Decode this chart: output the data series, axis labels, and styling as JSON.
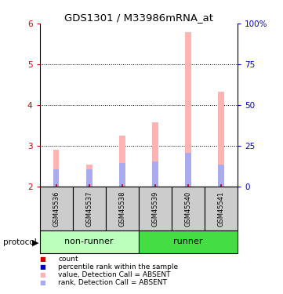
{
  "title": "GDS1301 / M33986mRNA_at",
  "samples": [
    "GSM45536",
    "GSM45537",
    "GSM45538",
    "GSM45539",
    "GSM45540",
    "GSM45541"
  ],
  "pink_bar_values": [
    2.9,
    2.55,
    3.25,
    3.58,
    5.78,
    4.32
  ],
  "blue_bar_values": [
    2.42,
    2.42,
    2.58,
    2.62,
    2.82,
    2.55
  ],
  "bar_bottom": 2.0,
  "ylim": [
    2.0,
    6.0
  ],
  "yticks_left": [
    2,
    3,
    4,
    5,
    6
  ],
  "yticks_right": [
    0,
    25,
    50,
    75,
    100
  ],
  "left_tick_color": "#cc0000",
  "right_tick_color": "#0000cc",
  "pink_color": "#ffb3b3",
  "blue_color": "#aaaaee",
  "red_marker_color": "#cc0000",
  "sample_box_color": "#cccccc",
  "nonrunner_color": "#bbffbb",
  "runner_color": "#44dd44",
  "legend_items": [
    {
      "label": "count",
      "color": "#cc0000"
    },
    {
      "label": "percentile rank within the sample",
      "color": "#0000cc"
    },
    {
      "label": "value, Detection Call = ABSENT",
      "color": "#ffb3b3"
    },
    {
      "label": "rank, Detection Call = ABSENT",
      "color": "#aaaaee"
    }
  ],
  "bar_width": 0.18
}
